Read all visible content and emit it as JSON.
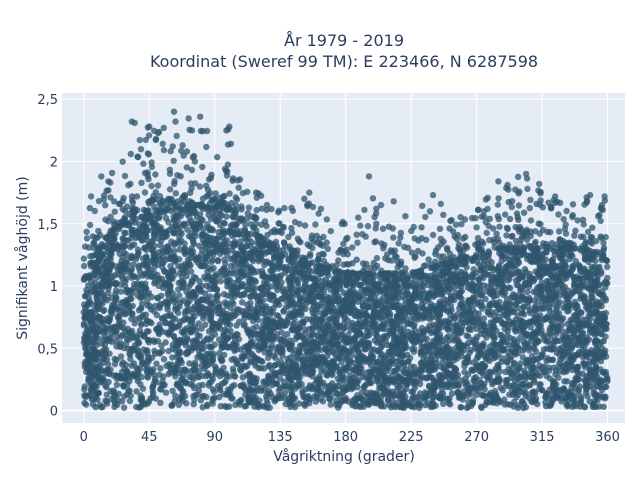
{
  "chart_data": {
    "type": "scatter",
    "title": "År 1979 - 2019",
    "subtitle": "Koordinat (Sweref 99 TM): E 223466, N 6287598",
    "xlabel": "Vågriktning (grader)",
    "ylabel": "Signifikant våghöjd (m)",
    "xlim": [
      -15,
      372
    ],
    "ylim": [
      -0.1,
      2.55
    ],
    "x_ticks": [
      0,
      45,
      90,
      135,
      180,
      225,
      270,
      315,
      360
    ],
    "x_tick_labels": [
      "0",
      "45",
      "90",
      "135",
      "180",
      "225",
      "270",
      "315",
      "360"
    ],
    "y_ticks": [
      0,
      0.5,
      1,
      1.5,
      2,
      2.5
    ],
    "y_tick_labels": [
      "0",
      "0,5",
      "1",
      "1,5",
      "2",
      "2,5"
    ],
    "grid": true,
    "legend": "none",
    "marker_color": "#2f566e",
    "plot_background": "#e5ecf6",
    "envelope": {
      "description_values_x": [
        0,
        5,
        10,
        20,
        30,
        40,
        50,
        60,
        70,
        80,
        90,
        100,
        110,
        120,
        135,
        150,
        165,
        180,
        195,
        210,
        225,
        240,
        255,
        270,
        285,
        300,
        315,
        330,
        345,
        360
      ],
      "dense_max_y": [
        1.05,
        1.15,
        1.3,
        1.45,
        1.55,
        1.65,
        1.7,
        1.7,
        1.65,
        1.65,
        1.7,
        1.65,
        1.5,
        1.4,
        1.3,
        1.2,
        1.15,
        1.1,
        1.1,
        1.1,
        1.1,
        1.15,
        1.2,
        1.25,
        1.3,
        1.3,
        1.3,
        1.3,
        1.3,
        1.2
      ],
      "outlier_max_y": [
        1.3,
        1.7,
        1.8,
        1.95,
        2.05,
        2.3,
        2.25,
        2.3,
        2.4,
        2.3,
        2.2,
        2.28,
        1.85,
        1.75,
        1.6,
        1.75,
        1.6,
        1.55,
        1.88,
        1.65,
        1.6,
        1.72,
        1.55,
        1.6,
        1.84,
        1.9,
        1.82,
        1.65,
        1.72,
        1.72
      ]
    },
    "highlight_points": [
      {
        "x": 5,
        "y": 1.72
      },
      {
        "x": 12,
        "y": 1.88
      },
      {
        "x": 33,
        "y": 2.32
      },
      {
        "x": 35,
        "y": 2.31
      },
      {
        "x": 45,
        "y": 2.28
      },
      {
        "x": 55,
        "y": 2.27
      },
      {
        "x": 62,
        "y": 2.4
      },
      {
        "x": 63,
        "y": 2.32
      },
      {
        "x": 80,
        "y": 2.36
      },
      {
        "x": 98,
        "y": 2.25
      },
      {
        "x": 100,
        "y": 2.28
      },
      {
        "x": 155,
        "y": 1.75
      },
      {
        "x": 163,
        "y": 1.62
      },
      {
        "x": 196,
        "y": 1.88
      },
      {
        "x": 213,
        "y": 1.68
      },
      {
        "x": 240,
        "y": 1.73
      },
      {
        "x": 275,
        "y": 1.6
      },
      {
        "x": 285,
        "y": 1.84
      },
      {
        "x": 304,
        "y": 1.9
      },
      {
        "x": 305,
        "y": 1.78
      },
      {
        "x": 313,
        "y": 1.82
      },
      {
        "x": 324,
        "y": 1.72
      },
      {
        "x": 348,
        "y": 1.73
      },
      {
        "x": 358,
        "y": 1.72
      }
    ]
  }
}
